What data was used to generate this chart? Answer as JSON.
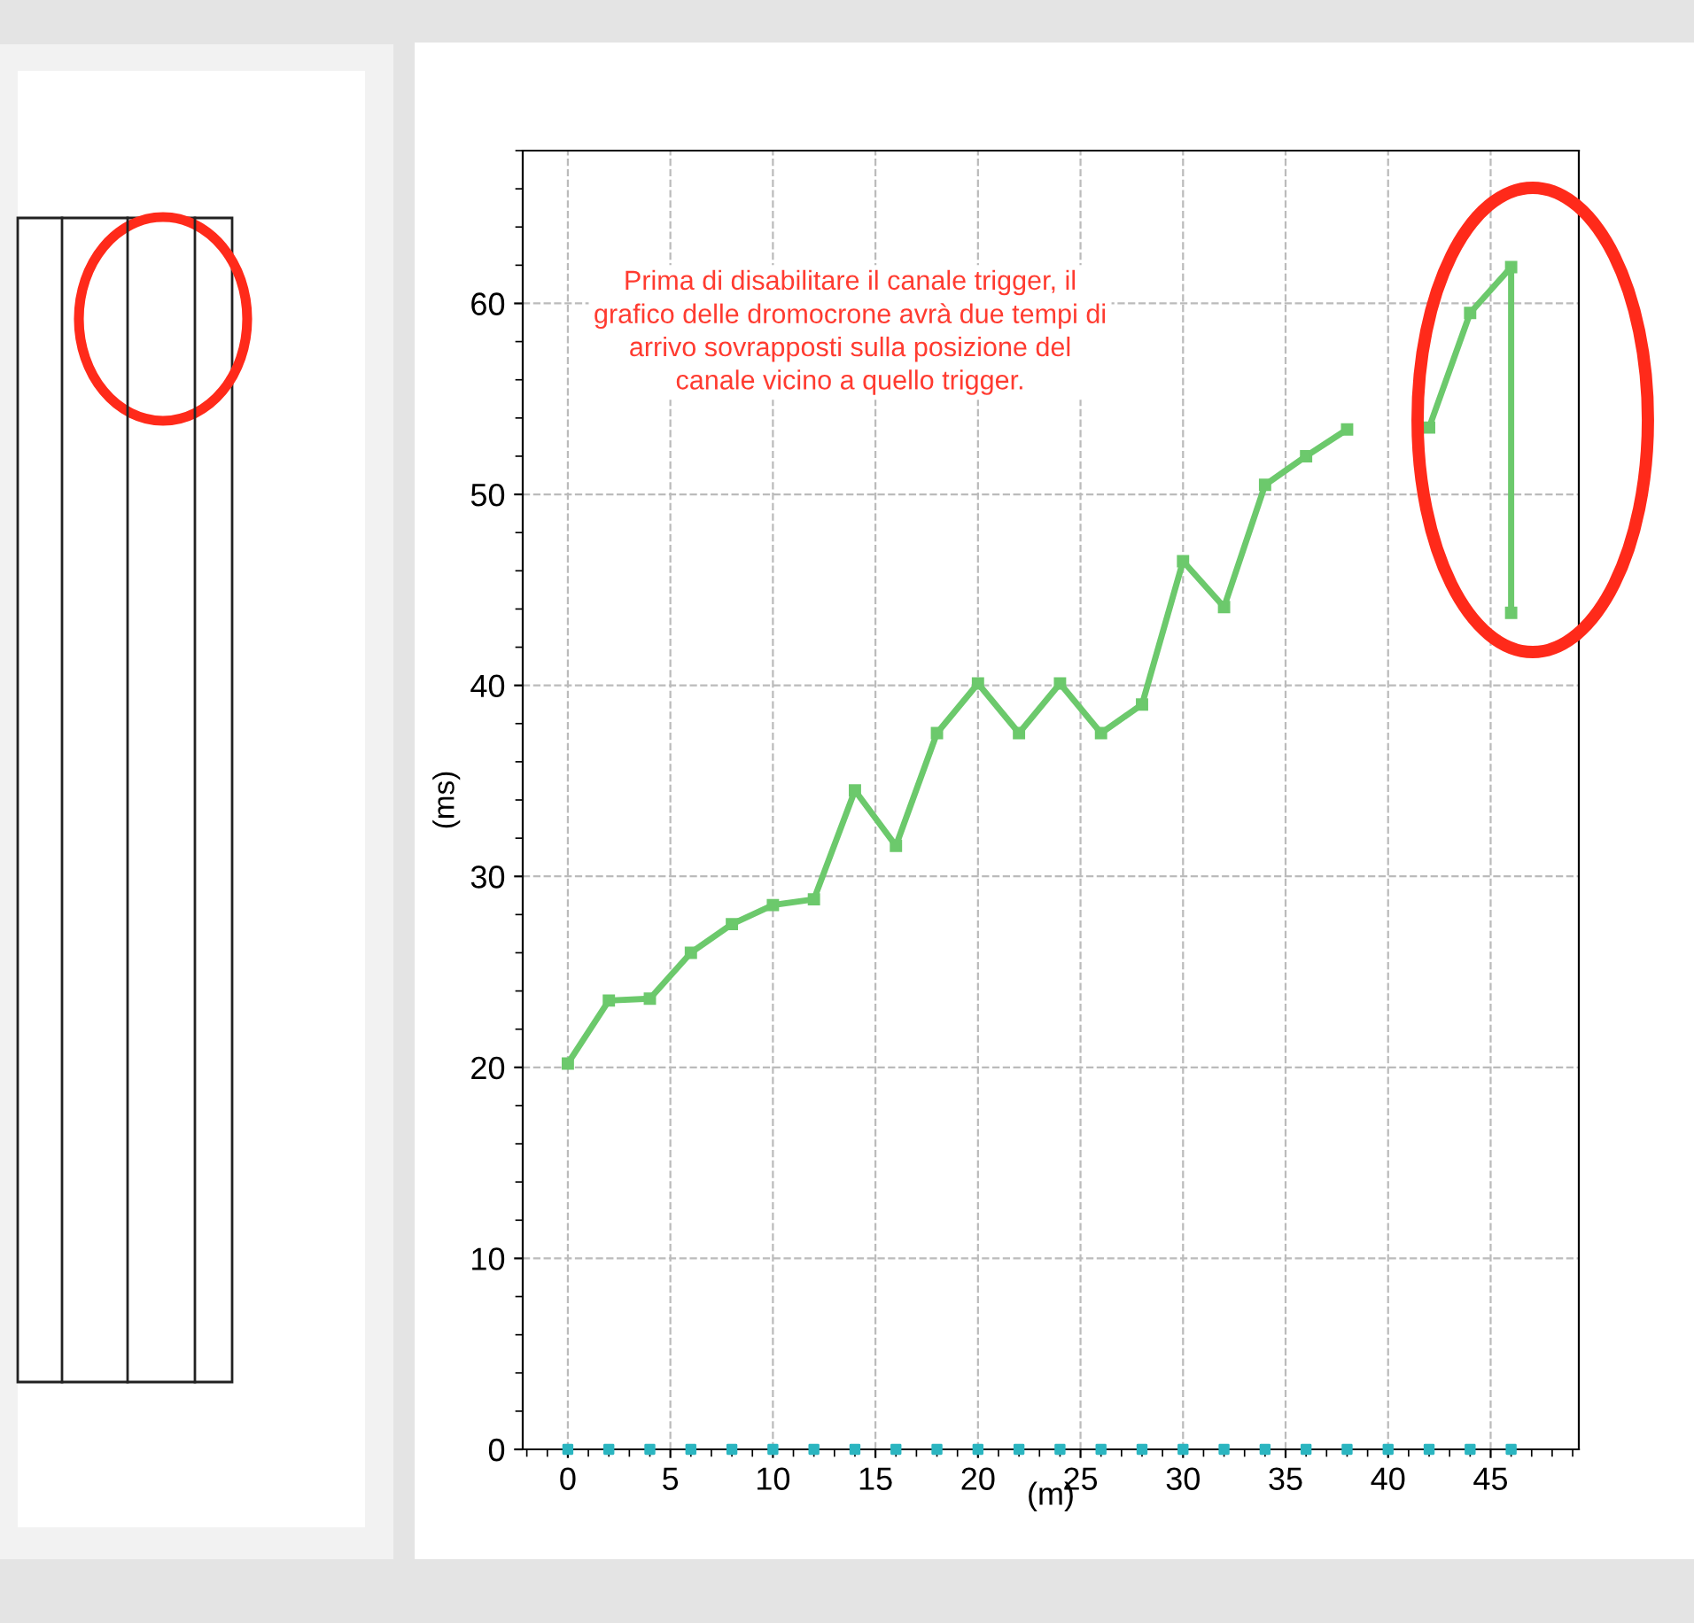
{
  "chart_data": {
    "type": "line",
    "xlabel": "(m)",
    "ylabel": "(ms)",
    "annotations": [
      "Prima di disabilitare il canale trigger, il\ngrafico delle dromocrone avrà due tempi di\narrivo sovrapposti sulla posizione del\ncanale vicino a quello trigger."
    ],
    "series": [
      {
        "color": "#6cc96c",
        "marker": "square",
        "x": [
          0,
          2,
          4,
          6,
          8,
          10,
          12,
          14,
          16,
          18,
          20,
          22,
          24,
          26,
          28,
          30,
          32,
          34,
          36,
          38,
          40,
          42,
          44,
          46,
          46
        ],
        "values": [
          20.2,
          23.5,
          23.6,
          26.0,
          27.5,
          28.5,
          28.8,
          34.5,
          31.6,
          37.5,
          40.1,
          37.5,
          40.1,
          37.5,
          39.0,
          46.5,
          44.1,
          50.5,
          52.0,
          53.4,
          null,
          53.5,
          59.5,
          61.9,
          43.8
        ]
      },
      {
        "type": "scatter",
        "color": "#2bb5c0",
        "marker": "square",
        "x": [
          0,
          2,
          4,
          6,
          8,
          10,
          12,
          14,
          16,
          18,
          20,
          22,
          24,
          26,
          28,
          30,
          32,
          34,
          36,
          38,
          40,
          42,
          44,
          46
        ],
        "values": [
          0,
          0,
          0,
          0,
          0,
          0,
          0,
          0,
          0,
          0,
          0,
          0,
          0,
          0,
          0,
          0,
          0,
          0,
          0,
          0,
          0,
          0,
          0,
          0
        ]
      }
    ],
    "xlim": [
      -2.2,
      49.3
    ],
    "ylim": [
      0,
      68
    ],
    "xticks": [
      0,
      5,
      10,
      15,
      20,
      25,
      30,
      35,
      40,
      45
    ],
    "yticks": [
      0,
      10,
      20,
      30,
      40,
      50,
      60
    ],
    "grid": true,
    "line_style": "solid",
    "legend": false
  }
}
